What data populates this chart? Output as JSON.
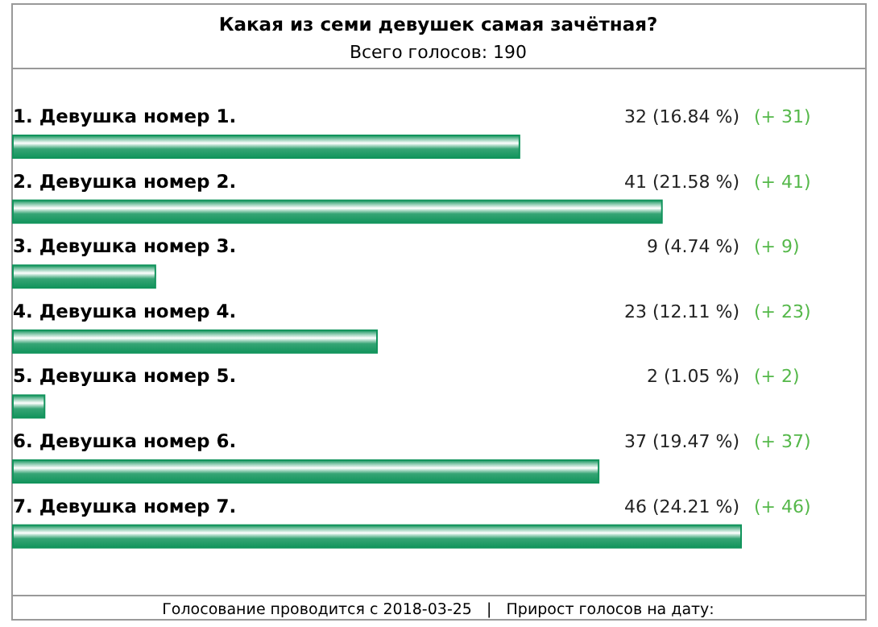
{
  "chart_data": {
    "type": "bar",
    "orientation": "horizontal",
    "title": "Какая из семи девушек самая зачётная?",
    "subtitle": "Всего голосов: 190",
    "categories": [
      "1. Девушка номер 1.",
      "2. Девушка номер 2.",
      "3. Девушка номер 3.",
      "4. Девушка номер 4.",
      "5. Девушка номер 5.",
      "6. Девушка номер 6.",
      "7. Девушка номер 7."
    ],
    "values": [
      32,
      41,
      9,
      23,
      2,
      37,
      46
    ],
    "value_labels": [
      "32 (16.84 %)",
      "41 (21.58 %)",
      "9 (4.74 %)",
      "23 (12.11 %)",
      "2 (1.05 %)",
      "37 (19.47 %)",
      "46 (24.21 %)"
    ],
    "color": "#12945c",
    "annotations": [
      "(+ 31)",
      "(+ 41)",
      "(+ 9)",
      "(+ 23)",
      "(+ 2)",
      "(+ 37)",
      "(+ 46)",
      "Голосование проводится с 2018-03-25   |   Прирост голосов на дату:"
    ]
  }
}
